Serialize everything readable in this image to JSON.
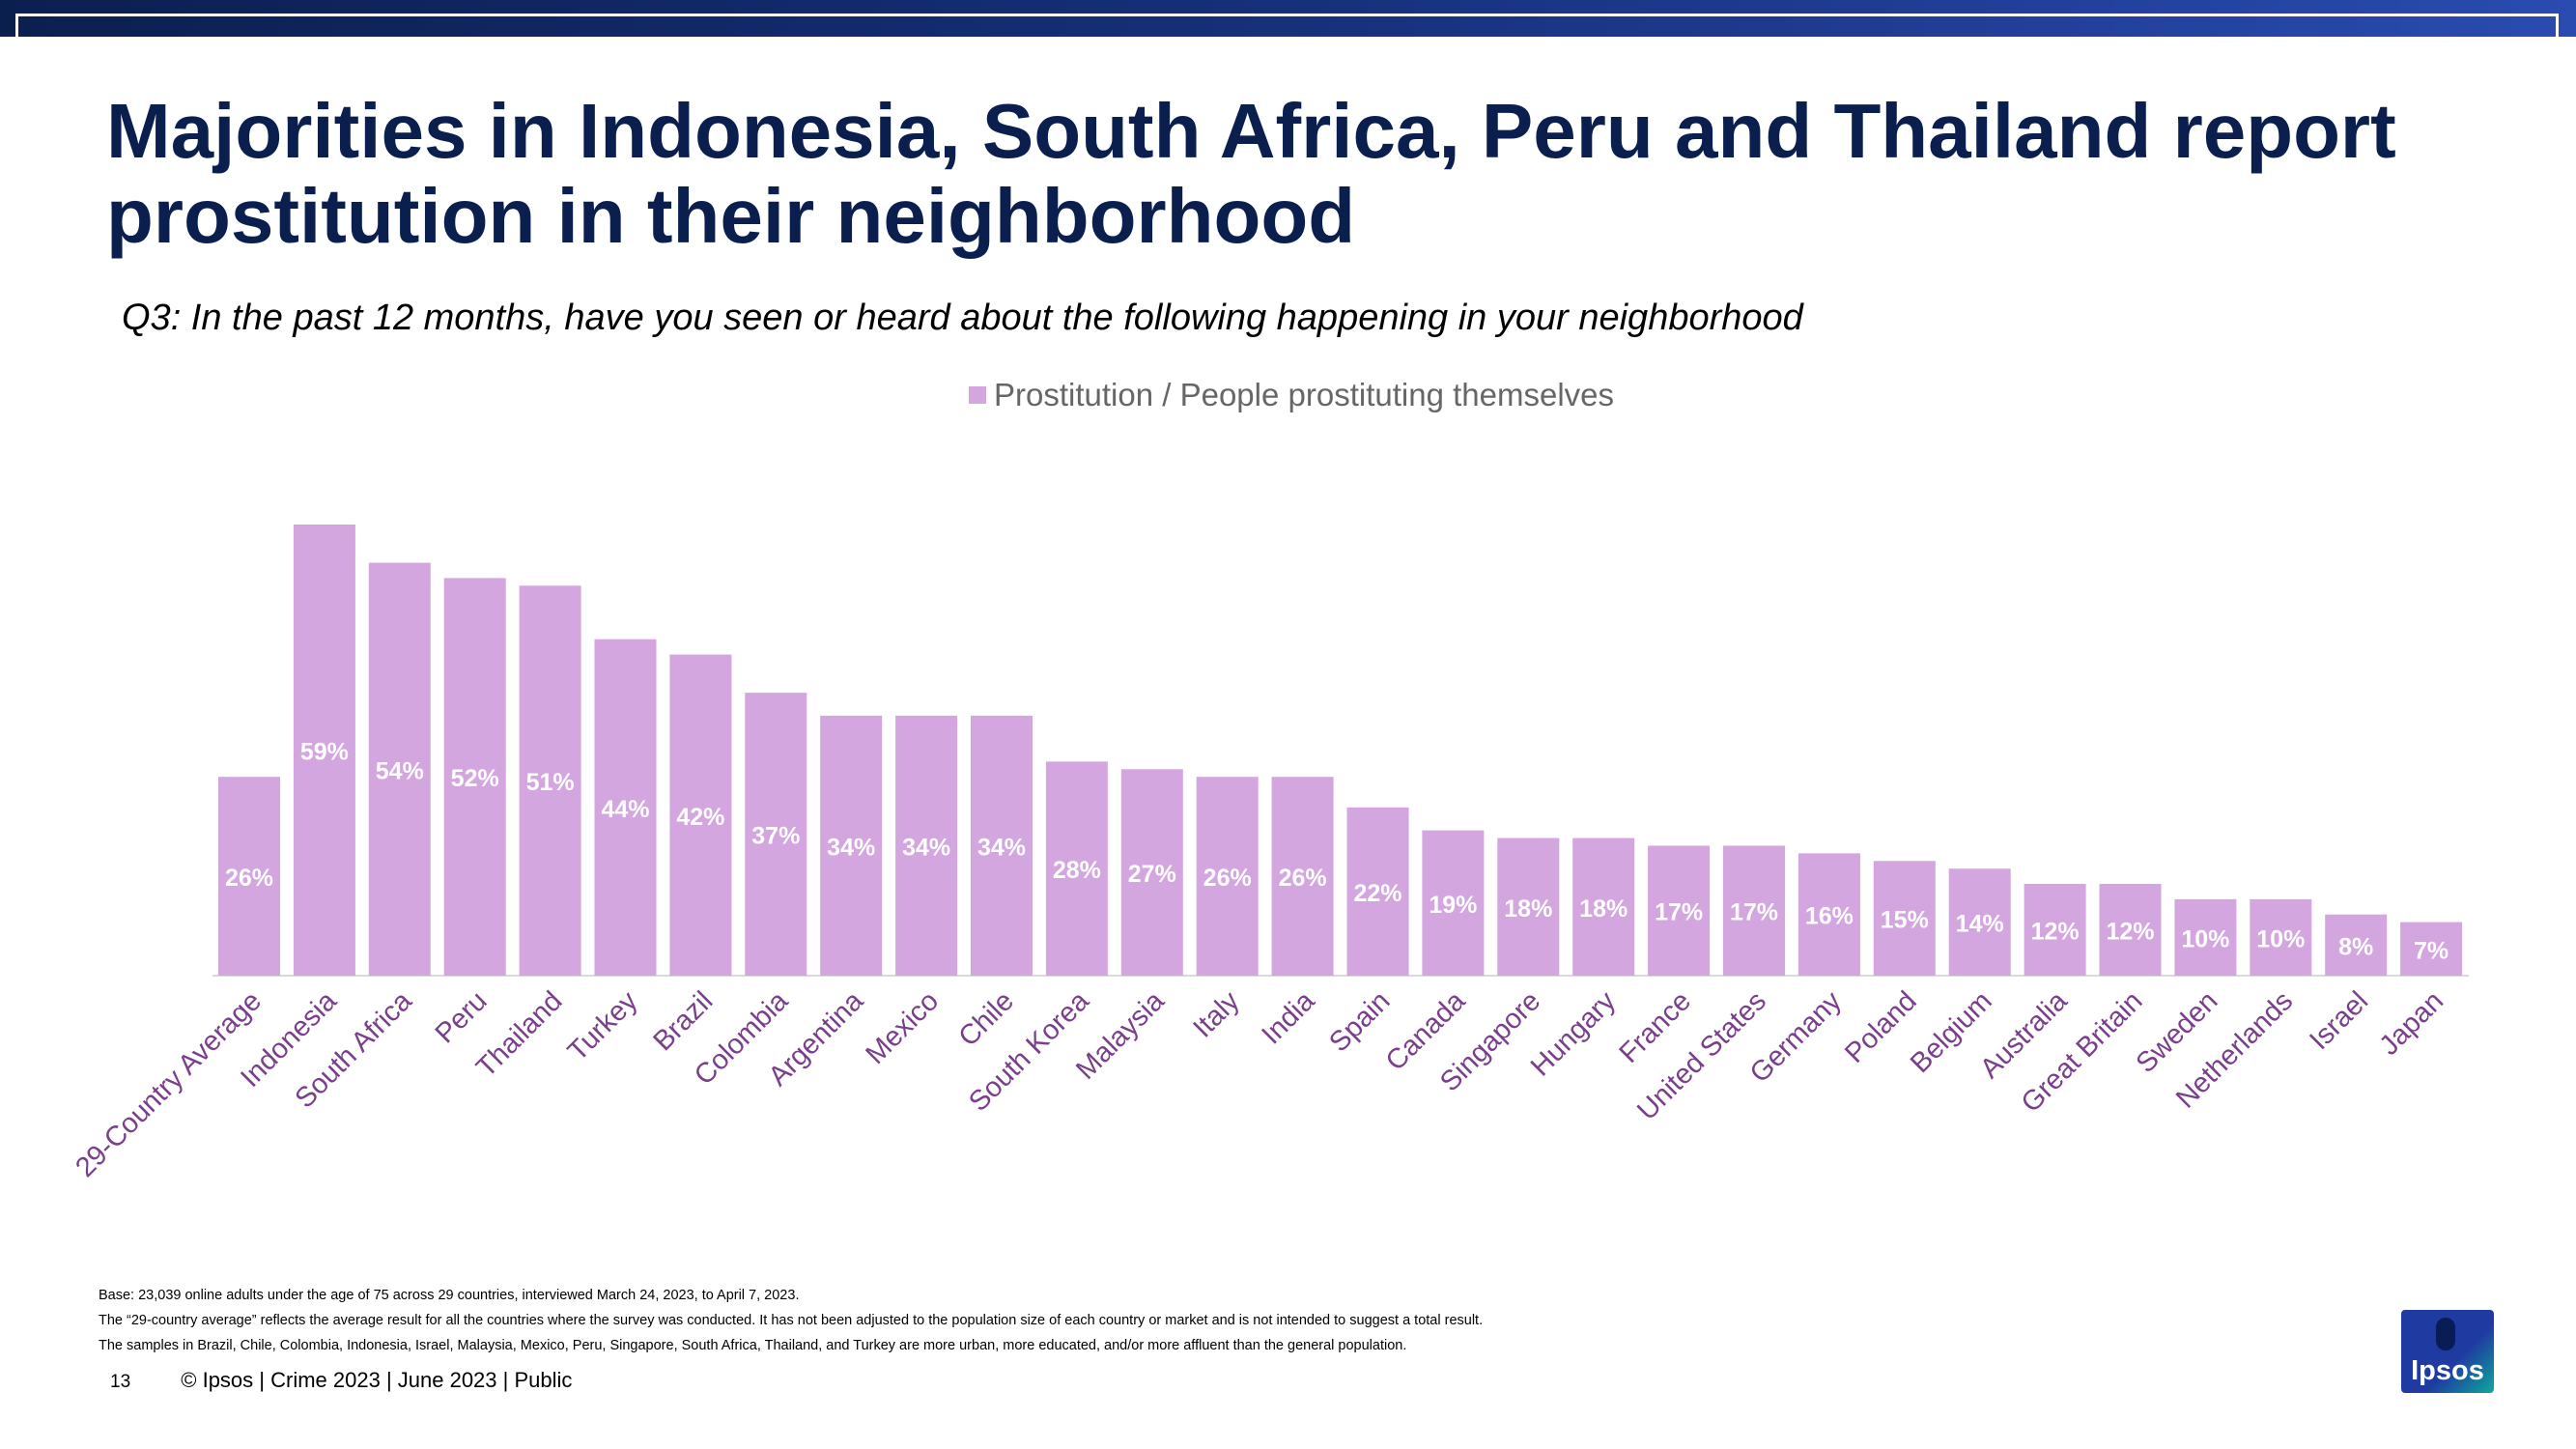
{
  "header": {
    "title": "Majorities in Indonesia, South Africa, Peru and Thailand report prostitution in their neighborhood",
    "subtitle": "Q3: In the past 12 months, have you seen or heard about the following happening in your neighborhood"
  },
  "colors": {
    "bar": "#d3a6e0",
    "title": "#0b1f4f",
    "label_on_bar": "#ffffff",
    "tick": "#7a3e8c"
  },
  "chart_data": {
    "type": "bar",
    "title": "",
    "series": [
      {
        "name": "Prostitution / People prostituting themselves",
        "values": [
          26,
          59,
          54,
          52,
          51,
          44,
          42,
          37,
          34,
          34,
          34,
          28,
          27,
          26,
          26,
          22,
          19,
          18,
          18,
          17,
          17,
          16,
          15,
          14,
          12,
          12,
          10,
          10,
          8,
          7
        ]
      }
    ],
    "categories": [
      "29-Country Average",
      "Indonesia",
      "South Africa",
      "Peru",
      "Thailand",
      "Turkey",
      "Brazil",
      "Colombia",
      "Argentina",
      "Mexico",
      "Chile",
      "South Korea",
      "Malaysia",
      "Italy",
      "India",
      "Spain",
      "Canada",
      "Singapore",
      "Hungary",
      "France",
      "United States",
      "Germany",
      "Poland",
      "Belgium",
      "Australia",
      "Great Britain",
      "Sweden",
      "Netherlands",
      "Israel",
      "Japan"
    ],
    "data_labels": [
      "26%",
      "59%",
      "54%",
      "52%",
      "51%",
      "44%",
      "42%",
      "37%",
      "34%",
      "34%",
      "34%",
      "28%",
      "27%",
      "26%",
      "26%",
      "22%",
      "19%",
      "18%",
      "18%",
      "17%",
      "17%",
      "16%",
      "15%",
      "14%",
      "12%",
      "12%",
      "10%",
      "10%",
      "8%",
      "7%"
    ],
    "xlabel": "",
    "ylabel": "",
    "ylim": [
      0,
      59
    ],
    "legend": "top-center",
    "grid": false
  },
  "footnotes": {
    "base": "Base: 23,039 online adults under the age of 75 across 29 countries, interviewed March 24, 2023, to April 7, 2023.",
    "average_note": "The “29-country average” reflects the average result for all the countries where the survey was conducted. It has not been adjusted to the population size of each country or market and is not intended to suggest a total result.",
    "samples_note": "The samples in Brazil, Chile, Colombia, Indonesia, Israel, Malaysia, Mexico, Peru, Singapore, South Africa, Thailand, and Turkey are more urban, more educated, and/or more affluent than the general population."
  },
  "footer": {
    "page_number": "13",
    "copyright": "© Ipsos | Crime 2023 | June 2023 | Public"
  },
  "logo": {
    "text": "Ipsos"
  }
}
